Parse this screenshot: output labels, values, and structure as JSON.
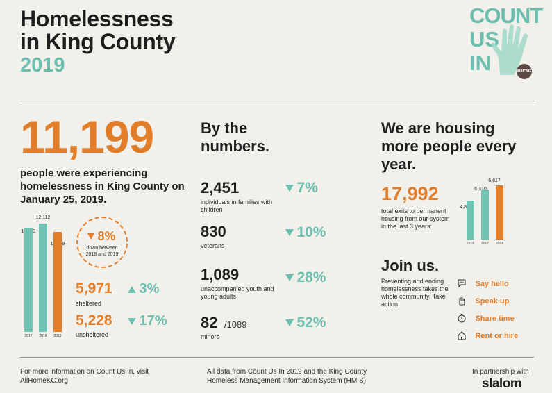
{
  "header": {
    "title_line1": "Homelessness",
    "title_line2": "in King County",
    "year": "2019",
    "logo": {
      "line1": "COUNT",
      "line2": "US",
      "line3": "IN",
      "badge": "AllHOME",
      "icon": "raised-hand-icon"
    }
  },
  "left": {
    "total": "11,199",
    "description": "people were experiencing homelessness in King County on January 25, 2019.",
    "chart_data": {
      "type": "bar",
      "categories": [
        "2017",
        "2018",
        "2019"
      ],
      "values": [
        11643,
        12112,
        11199
      ],
      "value_labels": [
        "11,643",
        "12,112",
        "11,199"
      ],
      "colors": [
        "#72c2b3",
        "#72c2b3",
        "#e27d2a"
      ]
    },
    "change": {
      "pct": "8%",
      "note": "down between 2018 and 2019"
    },
    "sheltered": {
      "value": "5,971",
      "label": "sheltered",
      "pct": "3%",
      "direction": "up"
    },
    "unsheltered": {
      "value": "5,228",
      "label": "unsheltered",
      "pct": "17%",
      "direction": "down"
    }
  },
  "numbers": {
    "title": "By the numbers.",
    "items": [
      {
        "value": "2,451",
        "extra": "",
        "label": "individuals in families with children",
        "pct": "7%"
      },
      {
        "value": "830",
        "extra": "",
        "label": "veterans",
        "pct": "10%"
      },
      {
        "value": "1,089",
        "extra": "",
        "label": "unaccompanied youth and young adults",
        "pct": "28%"
      },
      {
        "value": "82",
        "extra": "/1089",
        "label": "minors",
        "pct": "52%"
      }
    ]
  },
  "housing": {
    "title": "We are housing more people every year.",
    "total": "17,992",
    "description": "total exits to permanent housing from our system in the last 3 years:",
    "chart_data": {
      "type": "bar",
      "categories": [
        "2016",
        "2017",
        "2018"
      ],
      "values": [
        4865,
        6310,
        6817
      ],
      "value_labels": [
        "4,865",
        "6,310",
        "6,817"
      ],
      "colors": [
        "#72c2b3",
        "#72c2b3",
        "#e27d2a"
      ]
    }
  },
  "join": {
    "title": "Join us.",
    "description": "Preventing and ending homelessness takes the whole community. Take action:",
    "actions": [
      {
        "label": "Say hello",
        "icon": "speech-bubble-icon"
      },
      {
        "label": "Speak up",
        "icon": "raised-hand-icon"
      },
      {
        "label": "Share time",
        "icon": "stopwatch-icon"
      },
      {
        "label": "Rent or hire",
        "icon": "house-icon"
      }
    ]
  },
  "footer": {
    "info": "For more information on Count Us In, visit AllHomeKC.org",
    "source": "All data from Count Us In 2019 and the King County Homeless Management Information System (HMIS)",
    "partner_label": "In partnership with",
    "partner": "slalom"
  },
  "colors": {
    "teal": "#6cbfaf",
    "orange": "#e27d2a",
    "background": "#f1f0ea"
  }
}
